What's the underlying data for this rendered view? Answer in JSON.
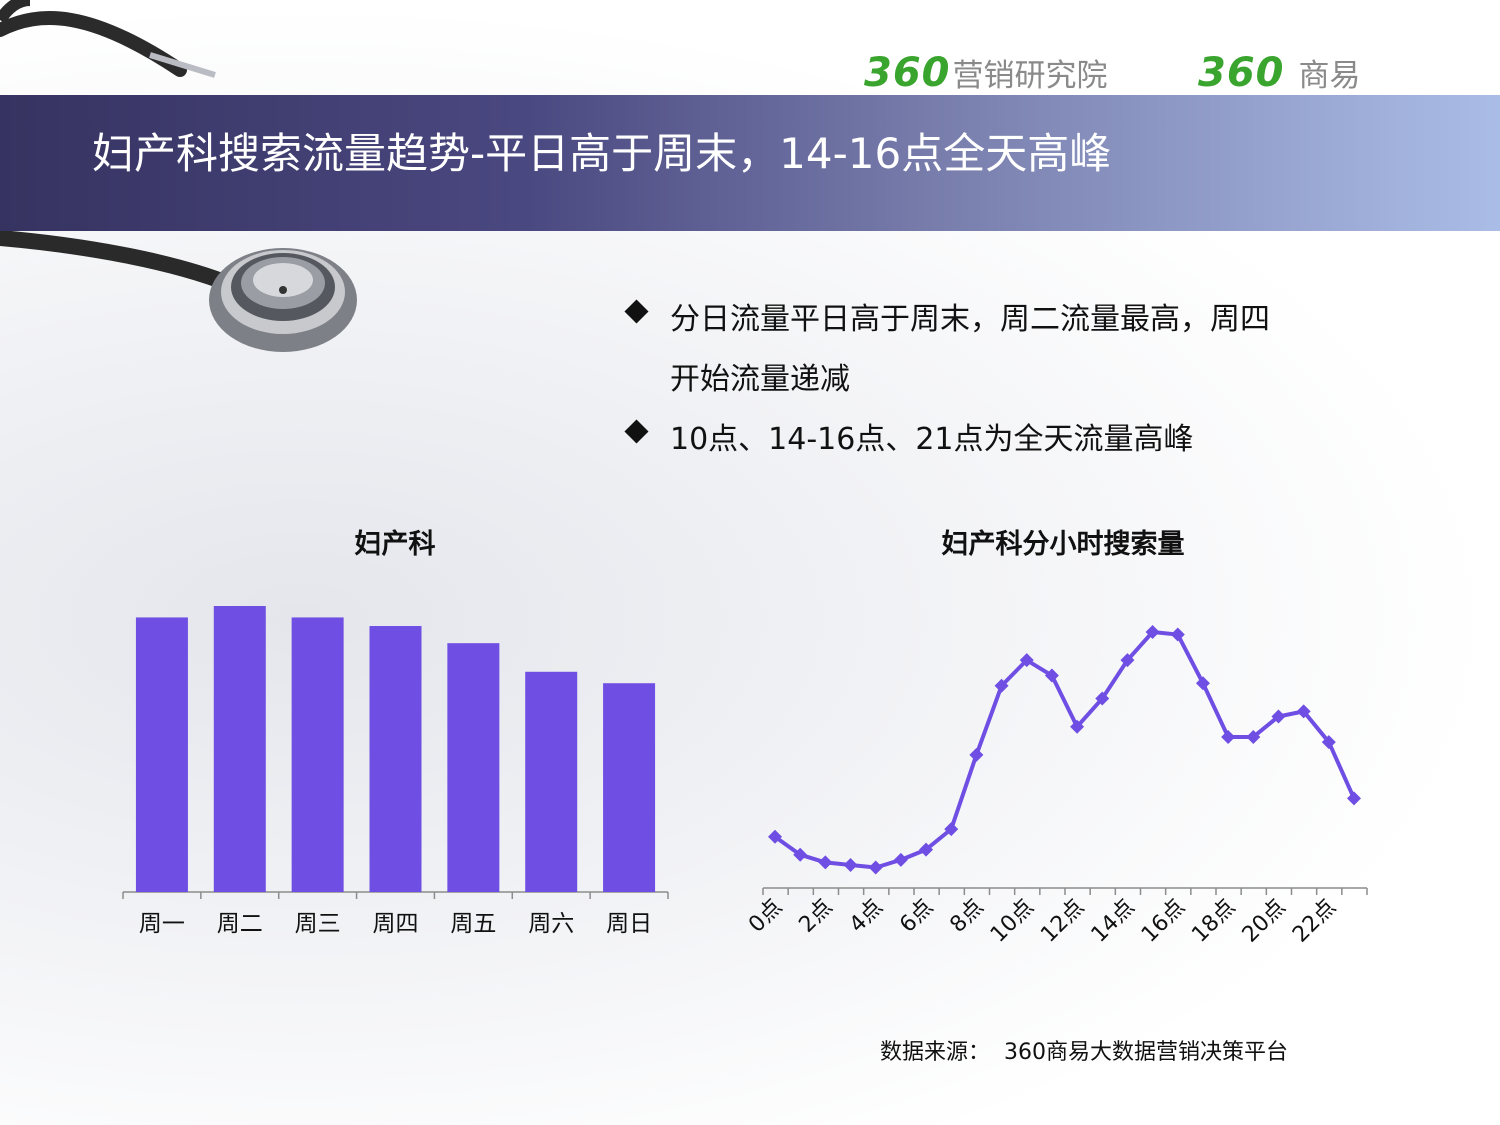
{
  "header": {
    "logo1_number": "360",
    "logo1_text": "营销研究院",
    "logo2_number": "360",
    "logo2_text": "商易"
  },
  "title": "妇产科搜索流量趋势-平日高于周末，14-16点全天高峰",
  "bullets": [
    "分日流量平日高于周末，周二流量最高，周四开始流量递减",
    "10点、14-16点、21点为全天流量高峰"
  ],
  "source": "数据来源：  360商易大数据营销决策平台",
  "colors": {
    "series": "#6f4fe3",
    "axis": "#8c8c8c",
    "logo_green": "#3aa52e",
    "title_bar_start": "#363361",
    "title_bar_end": "#aabde6"
  },
  "chart_data": [
    {
      "type": "bar",
      "title": "妇产科",
      "categories": [
        "周一",
        "周二",
        "周三",
        "周四",
        "周五",
        "周六",
        "周日"
      ],
      "values": [
        96,
        100,
        96,
        93,
        87,
        77,
        73
      ],
      "ylim": [
        0,
        100
      ],
      "grid": false,
      "legend": "none"
    },
    {
      "type": "line",
      "title": "妇产科分小时搜索量",
      "x": [
        0,
        1,
        2,
        3,
        4,
        5,
        6,
        7,
        8,
        9,
        10,
        11,
        12,
        13,
        14,
        15,
        16,
        17,
        18,
        19,
        20,
        21,
        22,
        23
      ],
      "x_tick_labels": [
        "0点",
        "2点",
        "4点",
        "6点",
        "8点",
        "10点",
        "12点",
        "14点",
        "16点",
        "18点",
        "20点",
        "22点"
      ],
      "values": [
        20,
        13,
        10,
        9,
        8,
        11,
        15,
        23,
        52,
        79,
        89,
        83,
        63,
        74,
        89,
        100,
        99,
        80,
        59,
        59,
        67,
        69,
        57,
        35
      ],
      "ylim": [
        0,
        100
      ],
      "marker": "diamond",
      "grid": false,
      "legend": "none"
    }
  ]
}
